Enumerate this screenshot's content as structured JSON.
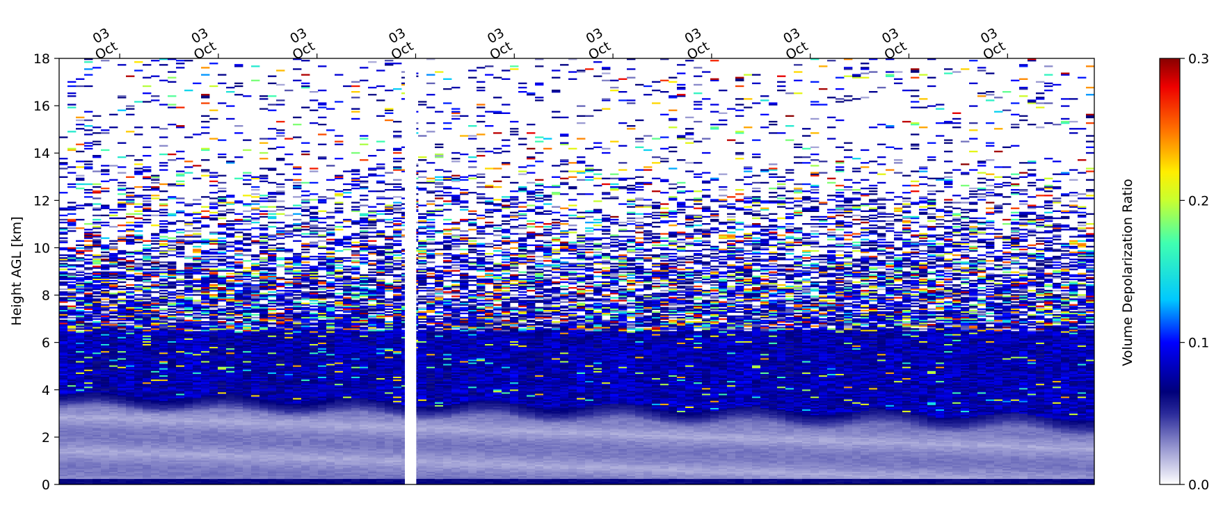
{
  "chart_data": {
    "type": "heatmap",
    "title": "",
    "xlabel": "",
    "ylabel": "Height AGL [km]",
    "ylim": [
      0,
      18
    ],
    "y_ticks": [
      0,
      2,
      4,
      6,
      8,
      10,
      12,
      14,
      16,
      18
    ],
    "x_tick_labels": [
      "03\nOct",
      "03\nOct",
      "03\nOct",
      "03\nOct",
      "03\nOct",
      "03\nOct",
      "03\nOct",
      "03\nOct",
      "03\nOct",
      "03\nOct"
    ],
    "x_axis_position": "top",
    "gap_fraction": [
      0.334,
      0.345
    ],
    "colorbar": {
      "label": "Volume Depolarization Ratio",
      "range": [
        0.0,
        0.3
      ],
      "ticks": [
        0.0,
        0.1,
        0.2,
        0.3
      ],
      "tick_labels": [
        "0.0",
        "0.1",
        "0.2",
        "0.3"
      ],
      "colormap_stops": [
        {
          "value": 0.0,
          "color": "#ffffff"
        },
        {
          "value": 0.025,
          "color": "#9a9ad2"
        },
        {
          "value": 0.05,
          "color": "#2a2a9a"
        },
        {
          "value": 0.065,
          "color": "#00007a"
        },
        {
          "value": 0.1,
          "color": "#0000ff"
        },
        {
          "value": 0.13,
          "color": "#00c8ff"
        },
        {
          "value": 0.17,
          "color": "#40ffb0"
        },
        {
          "value": 0.2,
          "color": "#c8ff30"
        },
        {
          "value": 0.22,
          "color": "#ffee00"
        },
        {
          "value": 0.25,
          "color": "#ff7000"
        },
        {
          "value": 0.28,
          "color": "#ee0000"
        },
        {
          "value": 0.3,
          "color": "#880000"
        }
      ]
    },
    "grid": false,
    "legend": "none"
  }
}
